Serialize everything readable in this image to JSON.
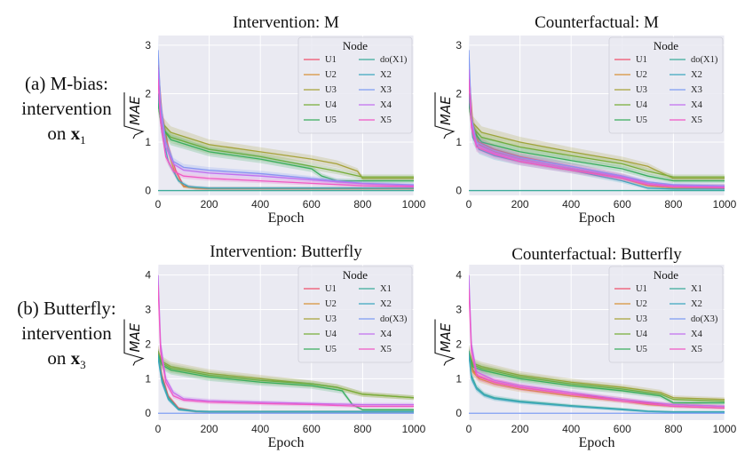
{
  "row_labels": [
    {
      "line1": "(a) M-bias:",
      "line2": "intervention",
      "line3_pre": "on",
      "line3_var": "x",
      "line3_sub": "1"
    },
    {
      "line1": "(b) Butterfly:",
      "line2": "intervention",
      "line3_pre": "on",
      "line3_var": "x",
      "line3_sub": "3"
    }
  ],
  "common": {
    "xlabel": "Epoch",
    "ylabel": "MAE",
    "legend_title": "Node"
  },
  "chart_data": [
    {
      "type": "line",
      "title": "Intervention: M",
      "xlabel": "Epoch",
      "ylabel": "√MAE",
      "xlim": [
        0,
        1000
      ],
      "ylim": [
        -0.1,
        3.2
      ],
      "xticks": [
        0,
        200,
        400,
        600,
        800,
        1000
      ],
      "yticks": [
        0,
        1,
        2,
        3
      ],
      "legend": [
        "U1",
        "U2",
        "U3",
        "U4",
        "U5",
        "do(X1)",
        "X2",
        "X3",
        "X4",
        "X5"
      ],
      "legend_position": "top-right",
      "series": [
        {
          "name": "U1",
          "x": [
            0,
            15,
            40,
            70,
            100,
            150,
            200,
            1000
          ],
          "y": [
            2.6,
            1.6,
            0.9,
            0.4,
            0.1,
            0.05,
            0.04,
            0.04
          ]
        },
        {
          "name": "U2",
          "x": [
            0,
            15,
            40,
            70,
            100,
            150,
            200,
            1000
          ],
          "y": [
            2.5,
            1.5,
            0.8,
            0.3,
            0.08,
            0.05,
            0.04,
            0.04
          ]
        },
        {
          "name": "U3",
          "x": [
            0,
            15,
            50,
            200,
            400,
            600,
            700,
            780,
            800,
            1000
          ],
          "y": [
            1.9,
            1.4,
            1.2,
            0.95,
            0.8,
            0.65,
            0.55,
            0.4,
            0.25,
            0.25
          ]
        },
        {
          "name": "U4",
          "x": [
            0,
            15,
            50,
            200,
            400,
            600,
            700,
            800,
            1000
          ],
          "y": [
            1.8,
            1.3,
            1.1,
            0.85,
            0.7,
            0.5,
            0.4,
            0.28,
            0.28
          ]
        },
        {
          "name": "U5",
          "x": [
            0,
            15,
            50,
            200,
            400,
            600,
            640,
            700,
            1000
          ],
          "y": [
            1.8,
            1.3,
            1.05,
            0.8,
            0.65,
            0.45,
            0.3,
            0.2,
            0.2
          ]
        },
        {
          "name": "do(X1)",
          "x": [
            0,
            1000
          ],
          "y": [
            0,
            0
          ]
        },
        {
          "name": "X2",
          "x": [
            0,
            15,
            40,
            80,
            120,
            200,
            1000
          ],
          "y": [
            2.0,
            1.2,
            0.6,
            0.2,
            0.08,
            0.05,
            0.05
          ]
        },
        {
          "name": "X3",
          "x": [
            0,
            10,
            30,
            60,
            100,
            200,
            400,
            600,
            800,
            1000
          ],
          "y": [
            2.9,
            1.8,
            1.0,
            0.6,
            0.48,
            0.42,
            0.35,
            0.25,
            0.15,
            0.12
          ]
        },
        {
          "name": "X4",
          "x": [
            0,
            10,
            30,
            60,
            100,
            200,
            400,
            600,
            800,
            1000
          ],
          "y": [
            2.5,
            1.6,
            0.9,
            0.55,
            0.42,
            0.36,
            0.3,
            0.22,
            0.14,
            0.1
          ]
        },
        {
          "name": "X5",
          "x": [
            0,
            10,
            30,
            60,
            100,
            200,
            400,
            600,
            800,
            1000
          ],
          "y": [
            2.3,
            1.4,
            0.7,
            0.4,
            0.3,
            0.25,
            0.2,
            0.15,
            0.1,
            0.08
          ]
        }
      ]
    },
    {
      "type": "line",
      "title": "Counterfactual: M",
      "xlabel": "Epoch",
      "ylabel": "√MAE",
      "xlim": [
        0,
        1000
      ],
      "ylim": [
        -0.1,
        3.2
      ],
      "xticks": [
        0,
        200,
        400,
        600,
        800,
        1000
      ],
      "yticks": [
        0,
        1,
        2,
        3
      ],
      "legend": [
        "U1",
        "U2",
        "U3",
        "U4",
        "U5",
        "do(X1)",
        "X2",
        "X3",
        "X4",
        "X5"
      ],
      "legend_position": "top-right",
      "series": [
        {
          "name": "U1",
          "x": [
            0,
            15,
            40,
            100,
            200,
            400,
            600,
            700,
            800,
            1000
          ],
          "y": [
            2.5,
            1.4,
            1.0,
            0.85,
            0.7,
            0.5,
            0.3,
            0.15,
            0.1,
            0.1
          ]
        },
        {
          "name": "U2",
          "x": [
            0,
            15,
            40,
            100,
            200,
            400,
            600,
            700,
            800,
            1000
          ],
          "y": [
            2.4,
            1.3,
            0.95,
            0.8,
            0.65,
            0.45,
            0.25,
            0.1,
            0.05,
            0.05
          ]
        },
        {
          "name": "U3",
          "x": [
            0,
            15,
            50,
            200,
            400,
            600,
            700,
            780,
            800,
            1000
          ],
          "y": [
            1.9,
            1.4,
            1.2,
            1.0,
            0.8,
            0.62,
            0.5,
            0.3,
            0.25,
            0.25
          ]
        },
        {
          "name": "U4",
          "x": [
            0,
            15,
            50,
            200,
            400,
            600,
            700,
            800,
            1000
          ],
          "y": [
            1.8,
            1.3,
            1.1,
            0.9,
            0.72,
            0.55,
            0.4,
            0.28,
            0.28
          ]
        },
        {
          "name": "U5",
          "x": [
            0,
            15,
            50,
            200,
            400,
            600,
            700,
            800,
            1000
          ],
          "y": [
            1.8,
            1.25,
            1.0,
            0.8,
            0.62,
            0.45,
            0.3,
            0.2,
            0.2
          ]
        },
        {
          "name": "do(X1)",
          "x": [
            0,
            1000
          ],
          "y": [
            0,
            0
          ]
        },
        {
          "name": "X2",
          "x": [
            0,
            15,
            40,
            100,
            200,
            400,
            600,
            700,
            800,
            1000
          ],
          "y": [
            2.0,
            1.1,
            0.85,
            0.72,
            0.6,
            0.42,
            0.2,
            0.05,
            0.03,
            0.03
          ]
        },
        {
          "name": "X3",
          "x": [
            0,
            10,
            30,
            100,
            200,
            400,
            600,
            700,
            800,
            1000
          ],
          "y": [
            2.9,
            1.5,
            1.0,
            0.82,
            0.68,
            0.5,
            0.3,
            0.18,
            0.12,
            0.1
          ]
        },
        {
          "name": "X4",
          "x": [
            0,
            10,
            30,
            100,
            200,
            400,
            600,
            700,
            800,
            1000
          ],
          "y": [
            2.5,
            1.4,
            0.95,
            0.78,
            0.64,
            0.46,
            0.28,
            0.15,
            0.1,
            0.08
          ]
        },
        {
          "name": "X5",
          "x": [
            0,
            10,
            30,
            100,
            200,
            400,
            600,
            700,
            800,
            1000
          ],
          "y": [
            2.3,
            1.3,
            0.9,
            0.75,
            0.6,
            0.42,
            0.25,
            0.12,
            0.08,
            0.06
          ]
        }
      ]
    },
    {
      "type": "line",
      "title": "Intervention: Butterfly",
      "xlabel": "Epoch",
      "ylabel": "√MAE",
      "xlim": [
        0,
        1000
      ],
      "ylim": [
        -0.2,
        4.3
      ],
      "xticks": [
        0,
        200,
        400,
        600,
        800,
        1000
      ],
      "yticks": [
        0,
        1,
        2,
        3,
        4
      ],
      "legend": [
        "U1",
        "U2",
        "U3",
        "U4",
        "U5",
        "X1",
        "X2",
        "do(X3)",
        "X4",
        "X5"
      ],
      "legend_position": "top-right",
      "series": [
        {
          "name": "U1",
          "x": [
            0,
            15,
            40,
            80,
            150,
            200,
            1000
          ],
          "y": [
            1.8,
            1.1,
            0.5,
            0.15,
            0.05,
            0.04,
            0.04
          ]
        },
        {
          "name": "U2",
          "x": [
            0,
            15,
            40,
            80,
            150,
            200,
            1000
          ],
          "y": [
            1.7,
            1.0,
            0.45,
            0.12,
            0.05,
            0.04,
            0.04
          ]
        },
        {
          "name": "U3",
          "x": [
            0,
            15,
            50,
            200,
            400,
            600,
            700,
            750,
            800,
            1000
          ],
          "y": [
            1.8,
            1.5,
            1.35,
            1.15,
            1.0,
            0.85,
            0.75,
            0.65,
            0.55,
            0.45
          ]
        },
        {
          "name": "U4",
          "x": [
            0,
            15,
            50,
            200,
            400,
            600,
            700,
            800,
            1000
          ],
          "y": [
            1.7,
            1.45,
            1.3,
            1.1,
            0.95,
            0.85,
            0.75,
            0.55,
            0.45
          ]
        },
        {
          "name": "U5",
          "x": [
            0,
            15,
            50,
            200,
            400,
            600,
            720,
            760,
            800,
            1000
          ],
          "y": [
            1.7,
            1.4,
            1.25,
            1.05,
            0.9,
            0.8,
            0.65,
            0.25,
            0.1,
            0.1
          ]
        },
        {
          "name": "X1",
          "x": [
            0,
            15,
            40,
            80,
            150,
            200,
            1000
          ],
          "y": [
            1.7,
            1.0,
            0.45,
            0.12,
            0.06,
            0.05,
            0.05
          ]
        },
        {
          "name": "X2",
          "x": [
            0,
            15,
            40,
            80,
            150,
            200,
            1000
          ],
          "y": [
            1.6,
            0.9,
            0.4,
            0.1,
            0.05,
            0.04,
            0.04
          ]
        },
        {
          "name": "do(X3)",
          "x": [
            0,
            1000
          ],
          "y": [
            0,
            0
          ]
        },
        {
          "name": "X4",
          "x": [
            0,
            10,
            30,
            60,
            100,
            200,
            400,
            600,
            800,
            1000
          ],
          "y": [
            4.0,
            2.0,
            1.0,
            0.6,
            0.42,
            0.36,
            0.32,
            0.28,
            0.25,
            0.25
          ]
        },
        {
          "name": "X5",
          "x": [
            0,
            10,
            30,
            60,
            100,
            200,
            400,
            600,
            800,
            1000
          ],
          "y": [
            3.7,
            1.8,
            0.9,
            0.5,
            0.38,
            0.32,
            0.28,
            0.25,
            0.2,
            0.2
          ]
        }
      ]
    },
    {
      "type": "line",
      "title": "Counterfactual: Butterfly",
      "xlabel": "Epoch",
      "ylabel": "√MAE",
      "xlim": [
        0,
        1000
      ],
      "ylim": [
        -0.2,
        4.3
      ],
      "xticks": [
        0,
        200,
        400,
        600,
        800,
        1000
      ],
      "yticks": [
        0,
        1,
        2,
        3,
        4
      ],
      "legend": [
        "U1",
        "U2",
        "U3",
        "U4",
        "U5",
        "X1",
        "X2",
        "do(X3)",
        "X4",
        "X5"
      ],
      "legend_position": "top-right",
      "series": [
        {
          "name": "U1",
          "x": [
            0,
            15,
            40,
            100,
            200,
            400,
            600,
            700,
            800,
            1000
          ],
          "y": [
            1.8,
            1.25,
            1.05,
            0.9,
            0.75,
            0.55,
            0.4,
            0.3,
            0.25,
            0.2
          ]
        },
        {
          "name": "U2",
          "x": [
            0,
            15,
            40,
            100,
            200,
            400,
            600,
            700,
            800,
            1000
          ],
          "y": [
            1.7,
            1.2,
            1.0,
            0.85,
            0.7,
            0.5,
            0.35,
            0.25,
            0.2,
            0.15
          ]
        },
        {
          "name": "U3",
          "x": [
            0,
            15,
            50,
            200,
            400,
            600,
            750,
            800,
            1000
          ],
          "y": [
            1.8,
            1.45,
            1.35,
            1.1,
            0.9,
            0.75,
            0.6,
            0.45,
            0.4
          ]
        },
        {
          "name": "U4",
          "x": [
            0,
            15,
            50,
            200,
            400,
            600,
            750,
            800,
            1000
          ],
          "y": [
            1.7,
            1.4,
            1.3,
            1.05,
            0.85,
            0.7,
            0.55,
            0.4,
            0.35
          ]
        },
        {
          "name": "U5",
          "x": [
            0,
            15,
            50,
            200,
            400,
            600,
            750,
            800,
            1000
          ],
          "y": [
            1.7,
            1.35,
            1.25,
            1.0,
            0.8,
            0.65,
            0.5,
            0.3,
            0.3
          ]
        },
        {
          "name": "X1",
          "x": [
            0,
            10,
            30,
            60,
            100,
            200,
            400,
            600,
            700,
            800,
            1000
          ],
          "y": [
            1.8,
            1.1,
            0.75,
            0.55,
            0.45,
            0.35,
            0.22,
            0.12,
            0.06,
            0.04,
            0.04
          ]
        },
        {
          "name": "X2",
          "x": [
            0,
            10,
            30,
            60,
            100,
            200,
            400,
            600,
            700,
            800,
            1000
          ],
          "y": [
            1.7,
            1.0,
            0.7,
            0.52,
            0.42,
            0.32,
            0.2,
            0.1,
            0.05,
            0.03,
            0.03
          ]
        },
        {
          "name": "do(X3)",
          "x": [
            0,
            1000
          ],
          "y": [
            0,
            0
          ]
        },
        {
          "name": "X4",
          "x": [
            0,
            10,
            30,
            100,
            200,
            400,
            600,
            800,
            1000
          ],
          "y": [
            4.0,
            2.0,
            1.2,
            0.95,
            0.8,
            0.6,
            0.4,
            0.25,
            0.2
          ]
        },
        {
          "name": "X5",
          "x": [
            0,
            10,
            30,
            100,
            200,
            400,
            600,
            800,
            1000
          ],
          "y": [
            3.6,
            1.8,
            1.1,
            0.9,
            0.75,
            0.55,
            0.35,
            0.2,
            0.15
          ]
        }
      ]
    }
  ],
  "series_colors": {
    "U1": "#f0506c",
    "U2": "#d8923a",
    "U3": "#a7a23a",
    "U4": "#78ad3a",
    "U5": "#3aae5e",
    "do(X1)": "#3aab9a",
    "X2": "#3ea7be",
    "X3": "#7e9cf2",
    "X4": "#c270ef",
    "X5": "#f058c5",
    "X1": "#3aab9a",
    "do(X3)": "#7e9cf2"
  },
  "style_colors": {
    "plot_bg": "#eaeaf2",
    "grid": "#ffffff",
    "legend_bg": "#eaeaf2"
  }
}
